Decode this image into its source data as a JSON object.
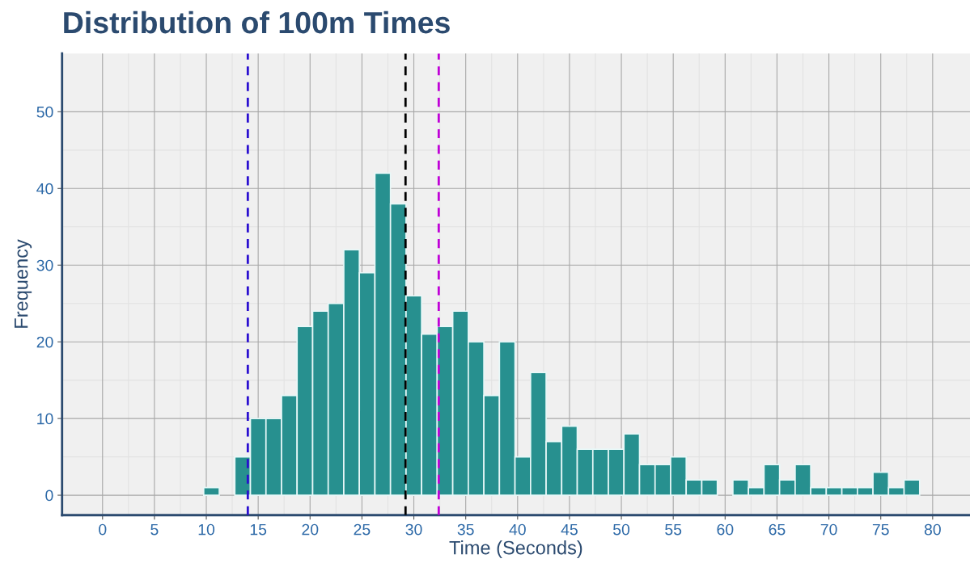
{
  "chart_data": {
    "type": "histogram",
    "title": "Distribution of 100m Times",
    "xlabel": "Time (Seconds)",
    "ylabel": "Frequency",
    "bins": [
      9.75,
      11.25,
      12.75,
      14.25,
      15.75,
      17.25,
      18.75,
      20.25,
      21.75,
      23.25,
      24.75,
      26.25,
      27.75,
      29.25,
      30.75,
      32.25,
      33.75,
      35.25,
      36.75,
      38.25,
      39.75,
      41.25,
      42.75,
      44.25,
      45.75,
      47.25,
      48.75,
      50.25,
      51.75,
      53.25,
      54.75,
      56.25,
      57.75,
      59.25,
      60.75,
      62.25,
      63.75,
      65.25,
      66.75,
      68.25,
      69.75,
      71.25,
      72.75,
      74.25,
      75.75,
      77.25,
      78.75
    ],
    "values": [
      1,
      0,
      5,
      10,
      10,
      13,
      22,
      24,
      25,
      32,
      29,
      42,
      38,
      26,
      21,
      22,
      24,
      20,
      13,
      20,
      5,
      16,
      7,
      9,
      6,
      6,
      6,
      8,
      4,
      4,
      5,
      2,
      2,
      0,
      2,
      1,
      4,
      2,
      4,
      1,
      1,
      1,
      1,
      3,
      1,
      2
    ],
    "color": "#27908f",
    "ref_lines": [
      {
        "axis": "x",
        "value": 14,
        "color": "#2a0fd0",
        "line_style": "dashed"
      },
      {
        "axis": "x",
        "value": 29.2,
        "color": "#000000",
        "line_style": "dashed"
      },
      {
        "axis": "x",
        "value": 32.4,
        "color": "#c000d8",
        "line_style": "dashed"
      }
    ],
    "xlim": [
      -3.9,
      83.6
    ],
    "ylim": [
      -2.6,
      57.6
    ],
    "xticks": [
      0,
      5,
      10,
      15,
      20,
      25,
      30,
      35,
      40,
      45,
      50,
      55,
      60,
      65,
      70,
      75,
      80
    ],
    "yticks": [
      0,
      10,
      20,
      30,
      40,
      50
    ],
    "grid": true
  }
}
